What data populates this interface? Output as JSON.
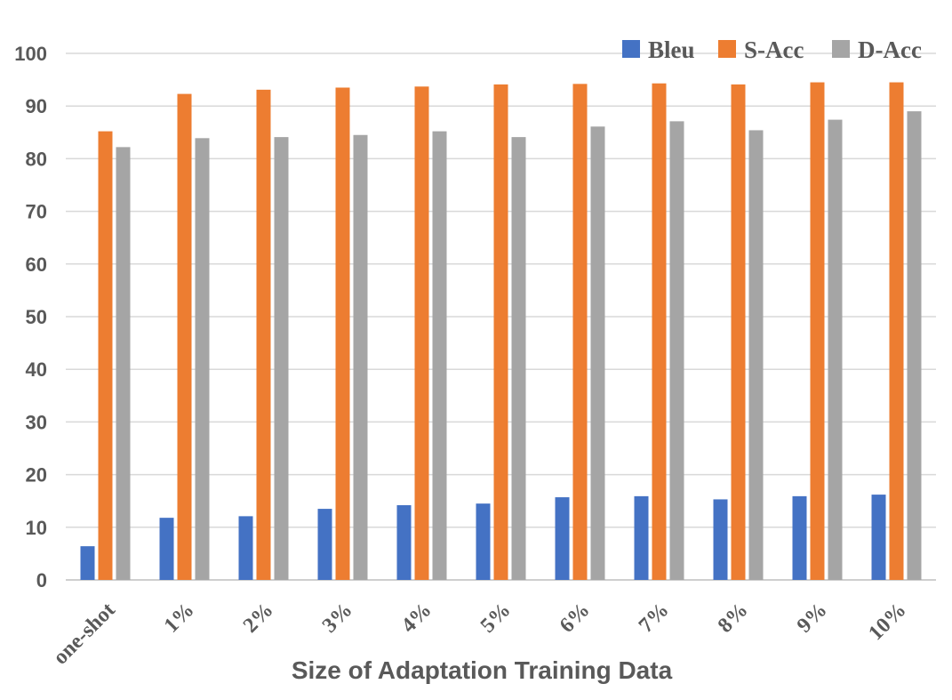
{
  "chart_data": {
    "type": "bar",
    "title": "",
    "xlabel": "Size of Adaptation Training Data",
    "ylabel": "",
    "ylim": [
      0,
      100
    ],
    "yticks": [
      0,
      10,
      20,
      30,
      40,
      50,
      60,
      70,
      80,
      90,
      100
    ],
    "grid": true,
    "legend_position": "top-right",
    "categories": [
      "one-shot",
      "1%",
      "2%",
      "3%",
      "4%",
      "5%",
      "6%",
      "7%",
      "8%",
      "9%",
      "10%"
    ],
    "series": [
      {
        "name": "Bleu",
        "color": "#4472C4",
        "values": [
          6.4,
          11.8,
          12.1,
          13.5,
          14.2,
          14.5,
          15.7,
          15.9,
          15.3,
          15.9,
          16.2
        ]
      },
      {
        "name": "S-Acc",
        "color": "#ED7D31",
        "values": [
          85.2,
          92.3,
          93.1,
          93.5,
          93.7,
          94.1,
          94.2,
          94.3,
          94.1,
          94.5,
          94.5
        ]
      },
      {
        "name": "D-Acc",
        "color": "#A5A5A5",
        "values": [
          82.2,
          83.9,
          84.1,
          84.5,
          85.2,
          84.1,
          86.1,
          87.1,
          85.4,
          87.4,
          89.0
        ]
      }
    ]
  }
}
